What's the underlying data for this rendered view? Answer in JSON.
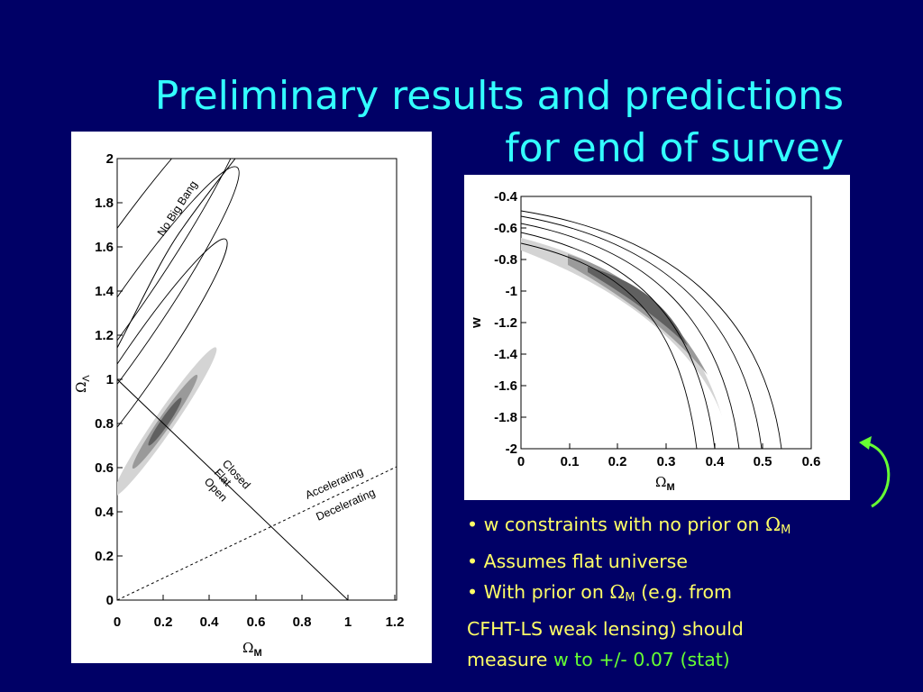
{
  "slide": {
    "title_line1": "Preliminary results and predictions",
    "title_line2": "for end of survey",
    "colors": {
      "background": "#000066",
      "title": "#33ffff",
      "text": "#ffff66",
      "highlight": "#66ff33"
    }
  },
  "left_plot": {
    "x_ticks": [
      "0",
      "0.2",
      "0.4",
      "0.6",
      "0.8",
      "1",
      "1.2"
    ],
    "y_ticks": [
      "0",
      "0.2",
      "0.4",
      "0.6",
      "0.8",
      "1",
      "1.2",
      "1.4",
      "1.6",
      "1.8",
      "2"
    ],
    "xlabel_symbol": "Ω",
    "xlabel_sub": "M",
    "ylabel_symbol": "Ω",
    "ylabel_sub": "Λ",
    "annotations": {
      "no_big_bang": "No Big Bang",
      "closed": "Closed",
      "flat": "Flat",
      "open": "Open",
      "accelerating": "Accelerating",
      "decelerating": "Decelerating"
    }
  },
  "right_plot": {
    "x_ticks": [
      "0",
      "0.1",
      "0.2",
      "0.3",
      "0.4",
      "0.5",
      "0.6"
    ],
    "y_ticks": [
      "-0.4",
      "-0.6",
      "-0.8",
      "-1",
      "-1.2",
      "-1.4",
      "-1.6",
      "-1.8",
      "-2"
    ],
    "xlabel_symbol": "Ω",
    "xlabel_sub": "M",
    "ylabel": "w"
  },
  "bullets": {
    "b1_text": "• w constraints with no prior on ",
    "b1_symbol": "Ω",
    "b1_sub": "M",
    "b2_text": "• Assumes flat universe",
    "b3_text_a": "• With prior on ",
    "b3_symbol": "Ω",
    "b3_sub": "M",
    "b3_text_b": " (e.g. from",
    "b4_text": "CFHT-LS weak lensing) should",
    "b5_text": "measure ",
    "b5_highlight": "w to +/- 0.07 (stat)"
  },
  "arrow_icon": "curved-arrow-icon"
}
